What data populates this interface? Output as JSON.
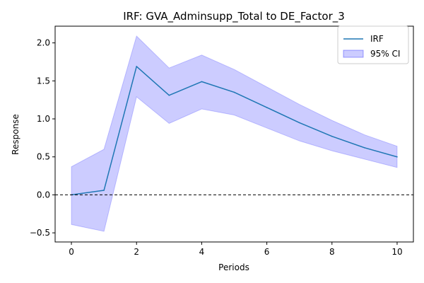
{
  "chart_data": {
    "type": "line",
    "title": "IRF: GVA_Adminsupp_Total to DE_Factor_3",
    "xlabel": "Periods",
    "ylabel": "Response",
    "xlim": [
      -0.5,
      10.5
    ],
    "ylim": [
      -0.62,
      2.22
    ],
    "x_ticks": [
      0,
      2,
      4,
      6,
      8,
      10
    ],
    "y_ticks": [
      -0.5,
      0.0,
      0.5,
      1.0,
      1.5,
      2.0
    ],
    "x_tick_labels": [
      "0",
      "2",
      "4",
      "6",
      "8",
      "10"
    ],
    "y_tick_labels": [
      "−0.5",
      "0.0",
      "0.5",
      "1.0",
      "1.5",
      "2.0"
    ],
    "grid": false,
    "legend_position": "top-right",
    "x": [
      0,
      1,
      2,
      3,
      4,
      5,
      6,
      7,
      8,
      9,
      10
    ],
    "series": [
      {
        "name": "IRF",
        "type": "line",
        "color": "#1f77b4",
        "values": [
          0.0,
          0.06,
          1.69,
          1.31,
          1.49,
          1.35,
          1.15,
          0.95,
          0.77,
          0.62,
          0.5
        ]
      },
      {
        "name": "95% CI",
        "type": "band",
        "color": "#0000ff",
        "fill_opacity": 0.2,
        "lower": [
          -0.39,
          -0.48,
          1.29,
          0.94,
          1.13,
          1.05,
          0.88,
          0.71,
          0.58,
          0.47,
          0.36
        ],
        "upper": [
          0.37,
          0.6,
          2.09,
          1.67,
          1.84,
          1.65,
          1.42,
          1.19,
          0.98,
          0.79,
          0.64
        ]
      }
    ],
    "reference_lines": [
      {
        "axis": "y",
        "value": 0.0,
        "style": "dashed",
        "color": "#000000"
      }
    ]
  }
}
